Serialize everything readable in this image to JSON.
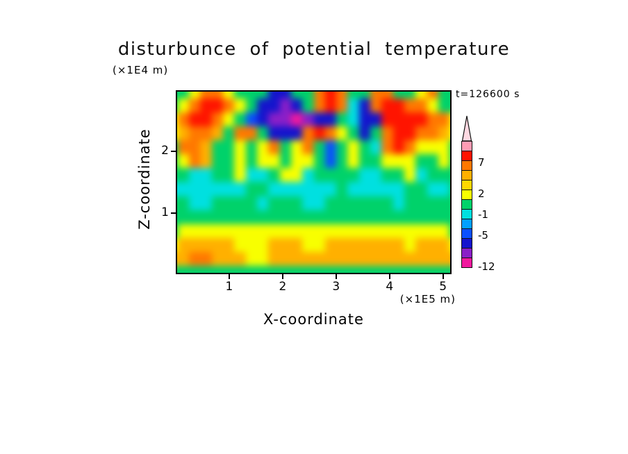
{
  "title": "disturbunce of potential temperature",
  "time_label": "t=126600 s",
  "axes": {
    "x_label": "X-coordinate",
    "x_unit": "(×1E5 m)",
    "y_label": "Z-coordinate",
    "y_unit": "(×1E4 m)",
    "x_tick_labels": [
      "1",
      "2",
      "3",
      "4",
      "5"
    ],
    "y_tick_labels": [
      "2",
      "1"
    ]
  },
  "colorbar": {
    "tip_color": "#ffd9e2",
    "labels": [
      "7",
      "2",
      "-1",
      "-5",
      "-12"
    ],
    "segments": [
      {
        "color": "#ff9cb4",
        "label": ""
      },
      {
        "color": "#ff1400",
        "label": "7"
      },
      {
        "color": "#ff7800",
        "label": ""
      },
      {
        "color": "#ffb000",
        "label": ""
      },
      {
        "color": "#ffd800",
        "label": "2"
      },
      {
        "color": "#f8ff00",
        "label": ""
      },
      {
        "color": "#00d26a",
        "label": "-1"
      },
      {
        "color": "#00e0e0",
        "label": ""
      },
      {
        "color": "#00a0ff",
        "label": "-5"
      },
      {
        "color": "#0a50ff",
        "label": ""
      },
      {
        "color": "#1414cd",
        "label": ""
      },
      {
        "color": "#8a1fc8",
        "label": "-12"
      },
      {
        "color": "#f0199e",
        "label": ""
      }
    ]
  },
  "chart_data": {
    "type": "heatmap",
    "title": "disturbunce of potential temperature",
    "xlabel": "X-coordinate (×1E5 m)",
    "ylabel": "Z-coordinate (×1E4 m)",
    "time_annotation": "t=126600 s",
    "x_range": [
      0,
      5.16
    ],
    "z_range": [
      0,
      3.0
    ],
    "x_ticks": [
      1,
      2,
      3,
      4,
      5
    ],
    "z_ticks": [
      1,
      2
    ],
    "colorbar_tick_labels": [
      7,
      2,
      -1,
      -5,
      -12
    ],
    "levels": [
      -12,
      -9,
      -7,
      -5,
      -3,
      -1,
      1,
      2,
      3,
      5,
      7,
      9,
      12
    ],
    "bin_colors": [
      "#f0199e",
      "#8a1fc8",
      "#1414cd",
      "#0a50ff",
      "#00a0ff",
      "#00e0e0",
      "#00d26a",
      "#f8ff00",
      "#ffd800",
      "#ffb000",
      "#ff7800",
      "#ff1400",
      "#ff9cb4",
      "#ffd9e2"
    ],
    "grid_orientation": "rows top-to-bottom (z high to low), columns left-to-right (x low to high)",
    "grid": [
      [
        0,
        0,
        1.5,
        6,
        6,
        1.5,
        0,
        0,
        0,
        -8,
        -8,
        0,
        0,
        6,
        8,
        6,
        0,
        0,
        6,
        6,
        0,
        0,
        1.5,
        6,
        0,
        0
      ],
      [
        0,
        1.5,
        6,
        8,
        8,
        6,
        1.5,
        0,
        -8,
        -8,
        -10,
        -8,
        0,
        6,
        8,
        6,
        -2,
        -8,
        6,
        8,
        8,
        6,
        6,
        1.5,
        0,
        0
      ],
      [
        1.5,
        6,
        8,
        8,
        6,
        1.5,
        0,
        -6,
        -8,
        -10,
        -10,
        -13,
        -10,
        -8,
        -8,
        0,
        -2,
        -8,
        -8,
        8,
        8,
        8,
        8,
        6,
        6,
        1.5
      ],
      [
        1.5,
        4,
        6,
        6,
        4,
        0,
        6,
        6,
        0,
        -8,
        -8,
        -8,
        6,
        8,
        6,
        1.5,
        0,
        -8,
        0,
        6,
        8,
        8,
        6,
        6,
        4,
        1.5
      ],
      [
        0,
        6,
        6,
        4,
        0,
        0,
        1.5,
        0,
        1.5,
        6,
        0,
        1.5,
        6,
        0,
        -6,
        0,
        1.5,
        0,
        -2,
        6,
        8,
        6,
        1.5,
        1.5,
        1.5,
        0
      ],
      [
        0,
        1.5,
        6,
        4,
        0,
        0,
        1.5,
        0,
        1.5,
        1.5,
        0,
        1.5,
        1.5,
        0,
        -6,
        0,
        1.5,
        0,
        0,
        1.5,
        1.5,
        1.5,
        0,
        0,
        1.5,
        0
      ],
      [
        0,
        0,
        -2,
        -2,
        0,
        0,
        1.5,
        -2,
        -2,
        0,
        1.5,
        1.5,
        -2,
        0,
        0,
        0,
        0,
        -2,
        -2,
        0,
        0,
        1.5,
        -2,
        0,
        0,
        0
      ],
      [
        -2,
        -2,
        -2,
        -2,
        -2,
        -2,
        -2,
        0,
        0,
        -2,
        -2,
        -2,
        -2,
        -2,
        -2,
        0,
        -2,
        -2,
        -2,
        -2,
        -2,
        0,
        0,
        -2,
        -2,
        0
      ],
      [
        0,
        0,
        -2,
        -2,
        0,
        0,
        0,
        0,
        -2,
        0,
        0,
        0,
        -2,
        -2,
        0,
        0,
        0,
        0,
        0,
        0,
        -2,
        0,
        0,
        0,
        0,
        0
      ],
      [
        0,
        0,
        0,
        0,
        0,
        0,
        0,
        0,
        0,
        0,
        0,
        0,
        0,
        0,
        0,
        0,
        0,
        0,
        0,
        0,
        0,
        0,
        0,
        0,
        0,
        0
      ],
      [
        0,
        1.5,
        1.5,
        1.5,
        1.5,
        1.5,
        1.5,
        1.5,
        1.5,
        1.5,
        1.5,
        1.5,
        1.5,
        1.5,
        1.5,
        1.5,
        1.5,
        1.5,
        1.5,
        1.5,
        1.5,
        1.5,
        1.5,
        1.5,
        1.5,
        0
      ],
      [
        1.5,
        4,
        4,
        4,
        4,
        4,
        1.5,
        1.5,
        1.5,
        4,
        4,
        4,
        1.5,
        1.5,
        4,
        4,
        4,
        4,
        4,
        4,
        4,
        1.5,
        4,
        4,
        4,
        1.5
      ],
      [
        4,
        4,
        6,
        6,
        4,
        4,
        4,
        1.5,
        1.5,
        4,
        4,
        4,
        4,
        4,
        4,
        4,
        4,
        4,
        4,
        4,
        4,
        4,
        4,
        4,
        4,
        4
      ],
      [
        0,
        0,
        0,
        0,
        0,
        0,
        0,
        0,
        0,
        0,
        0,
        0,
        0,
        0,
        0,
        0,
        0,
        0,
        0,
        0,
        0,
        0,
        0,
        0,
        0,
        0
      ]
    ]
  }
}
